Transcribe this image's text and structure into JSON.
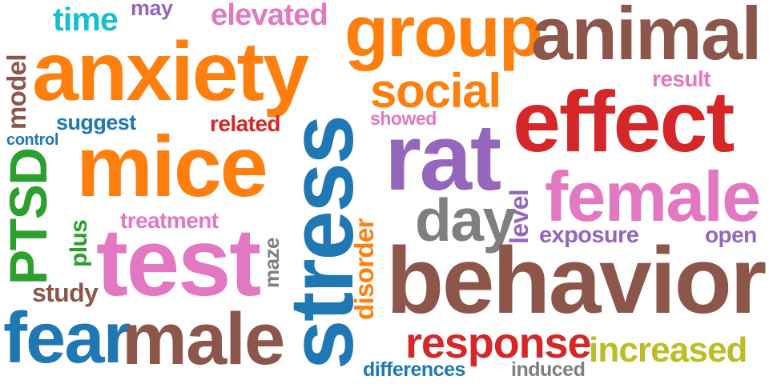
{
  "colors": {
    "orange": "#ff7f0e",
    "brown": "#8c564b",
    "blue": "#1f77b4",
    "red": "#d62728",
    "purple": "#9467bd",
    "pink": "#e377c2",
    "gray": "#7f7f7f",
    "green": "#2ca02c",
    "olive": "#bcbd22",
    "cyan": "#17becf"
  },
  "words": {
    "behavior": "behavior",
    "anxiety": "anxiety",
    "stress": "stress",
    "effect": "effect",
    "animal": "animal",
    "group": "group",
    "test": "test",
    "mice": "mice",
    "rat": "rat",
    "female": "female",
    "male": "male",
    "fear": "fear",
    "PTSD": "PTSD",
    "response": "response",
    "increased": "increased",
    "social": "social",
    "day": "day",
    "time": "time",
    "elevated": "elevated",
    "may": "may",
    "model": "model",
    "suggest": "suggest",
    "related": "related",
    "control": "control",
    "showed": "showed",
    "result": "result",
    "treatment": "treatment",
    "plus": "plus",
    "study": "study",
    "maze": "maze",
    "disorder": "disorder",
    "level": "level",
    "exposure": "exposure",
    "open": "open",
    "differences": "differences",
    "induced": "induced"
  }
}
